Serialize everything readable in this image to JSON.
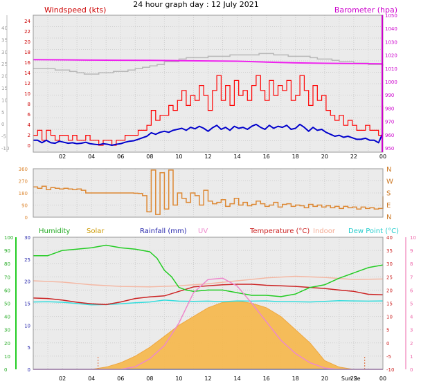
{
  "title": "24 hour graph day : 12 July 2021",
  "colors": {
    "wind": "#ff0000",
    "gust_avg": "#0000cc",
    "baro": "#ee22ee",
    "indoor_baro": "#b8b8b8",
    "winddir": "#dd8833",
    "humidity": "#22cc22",
    "solar": "#f7b84a",
    "rain": "#2222aa",
    "uv": "#ee88cc",
    "temp": "#cc2222",
    "indoor": "#f4b8a4",
    "dew": "#33dddd",
    "grid": "#cfcfcf"
  },
  "x_tick_labels": [
    "02",
    "04",
    "06",
    "08",
    "10",
    "12",
    "14",
    "16",
    "18",
    "20",
    "22",
    "00"
  ],
  "sun_label": "Sun Se",
  "chart_data": [
    {
      "type": "line",
      "panel": "wind_pressure",
      "left_axis_title": "Windspeed (kts)",
      "right_axis_title": "Barometer (hpa)",
      "left_ticks": [
        "24",
        "22",
        "20",
        "18",
        "16",
        "14",
        "12",
        "10",
        "8",
        "6",
        "4",
        "2",
        "0"
      ],
      "right_ticks": [
        "1050",
        "1040",
        "1030",
        "1020",
        "1010",
        "1000",
        "990",
        "980",
        "970",
        "960",
        "950"
      ],
      "outer_ticks": [
        "40",
        "35",
        "30",
        "25",
        "20",
        "15",
        "10",
        "5",
        "0",
        "-5",
        "-10"
      ],
      "ylim": [
        0,
        25
      ],
      "series": [
        {
          "key": "windspeed",
          "x": [
            0,
            0.3,
            0.6,
            0.9,
            1.2,
            1.5,
            1.8,
            2.1,
            2.4,
            2.7,
            3.0,
            3.3,
            3.6,
            3.9,
            4.2,
            4.5,
            4.8,
            5.1,
            5.4,
            5.7,
            6.0,
            6.3,
            6.6,
            6.9,
            7.2,
            7.5,
            7.8,
            8.1,
            8.4,
            8.7,
            9.0,
            9.3,
            9.6,
            9.9,
            10.2,
            10.5,
            10.8,
            11.1,
            11.4,
            11.7,
            12.0,
            12.3,
            12.6,
            12.9,
            13.2,
            13.5,
            13.8,
            14.1,
            14.4,
            14.7,
            15.0,
            15.3,
            15.6,
            15.9,
            16.2,
            16.5,
            16.8,
            17.1,
            17.4,
            17.7,
            18.0,
            18.3,
            18.6,
            18.9,
            19.2,
            19.5,
            19.8,
            20.1,
            20.4,
            20.7,
            21.0,
            21.3,
            21.6,
            21.9,
            22.2,
            22.5,
            22.8,
            23.1,
            23.4,
            23.7,
            24.0
          ],
          "y": [
            2,
            3,
            1,
            3,
            2,
            1,
            2,
            2,
            1,
            2,
            1,
            1,
            2,
            1,
            1,
            0,
            1,
            1,
            0,
            1,
            1,
            2,
            2,
            2,
            3,
            3,
            4,
            7,
            5,
            6,
            6,
            8,
            7,
            9,
            11,
            8,
            10,
            9,
            12,
            10,
            7,
            11,
            14,
            9,
            12,
            8,
            13,
            10,
            11,
            9,
            12,
            14,
            11,
            9,
            13,
            10,
            12,
            11,
            13,
            9,
            10,
            14,
            11,
            8,
            12,
            9,
            10,
            7,
            6,
            5,
            6,
            4,
            5,
            4,
            3,
            3,
            4,
            3,
            3,
            2,
            8
          ]
        },
        {
          "key": "gust_avg",
          "x": [
            0,
            0.3,
            0.6,
            0.9,
            1.2,
            1.5,
            1.8,
            2.1,
            2.4,
            2.7,
            3.0,
            3.3,
            3.6,
            3.9,
            4.2,
            4.5,
            4.8,
            5.1,
            5.4,
            5.7,
            6.0,
            6.3,
            6.6,
            6.9,
            7.2,
            7.5,
            7.8,
            8.1,
            8.4,
            8.7,
            9.0,
            9.3,
            9.6,
            9.9,
            10.2,
            10.5,
            10.8,
            11.1,
            11.4,
            11.7,
            12.0,
            12.3,
            12.6,
            12.9,
            13.2,
            13.5,
            13.8,
            14.1,
            14.4,
            14.7,
            15.0,
            15.3,
            15.6,
            15.9,
            16.2,
            16.5,
            16.8,
            17.1,
            17.4,
            17.7,
            18.0,
            18.3,
            18.6,
            18.9,
            19.2,
            19.5,
            19.8,
            20.1,
            20.4,
            20.7,
            21.0,
            21.3,
            21.6,
            21.9,
            22.2,
            22.5,
            22.8,
            23.1,
            23.4,
            23.7,
            24.0
          ],
          "y": [
            1,
            1,
            0.5,
            1,
            0.5,
            0.4,
            0.8,
            0.6,
            0.4,
            0.5,
            0.3,
            0.4,
            0.6,
            0.3,
            0.2,
            0.1,
            0.3,
            0.2,
            0,
            0.2,
            0.3,
            0.6,
            0.8,
            0.9,
            1.2,
            1.5,
            1.8,
            2.5,
            2.2,
            2.6,
            2.8,
            2.6,
            3.0,
            3.2,
            3.4,
            3.0,
            3.6,
            3.3,
            3.8,
            3.4,
            2.8,
            3.5,
            4.0,
            3.2,
            3.6,
            3.0,
            3.8,
            3.4,
            3.6,
            3.2,
            3.8,
            4.2,
            3.6,
            3.2,
            4.0,
            3.4,
            3.8,
            3.6,
            4.0,
            3.2,
            3.4,
            4.2,
            3.6,
            2.8,
            3.6,
            3.0,
            3.2,
            2.6,
            2.2,
            1.8,
            2.0,
            1.6,
            1.8,
            1.5,
            1.2,
            1.2,
            1.4,
            1.0,
            1.0,
            0.5,
            2.5
          ]
        },
        {
          "key": "barometer",
          "x": [
            0,
            2,
            4,
            6,
            8,
            10,
            12,
            14,
            16,
            18,
            20,
            22,
            24
          ],
          "y": [
            1017.5,
            1017.4,
            1017.2,
            1017.1,
            1017.0,
            1016.8,
            1016.6,
            1016.4,
            1015.8,
            1015.2,
            1014.9,
            1014.7,
            1014.5
          ]
        },
        {
          "key": "indoor_pressure",
          "x": [
            0,
            0.5,
            1.0,
            1.5,
            2.0,
            2.5,
            3.0,
            3.5,
            4.0,
            4.5,
            5.0,
            5.5,
            6.0,
            6.5,
            7.0,
            7.5,
            8.0,
            8.5,
            9.0,
            9.5,
            10.0,
            10.5,
            11.0,
            11.5,
            12.0,
            12.5,
            13.0,
            13.5,
            14.0,
            14.5,
            15.0,
            15.5,
            16.0,
            16.5,
            17.0,
            17.5,
            18.0,
            18.5,
            19.0,
            19.5,
            20.0,
            20.5,
            21.0,
            21.5,
            22.0,
            22.5,
            23.0,
            23.5,
            24.0
          ],
          "y": [
            1011,
            1011,
            1011,
            1010,
            1010,
            1009,
            1008,
            1007,
            1007,
            1008,
            1008,
            1009,
            1009,
            1010,
            1011,
            1012,
            1013,
            1014,
            1016,
            1016,
            1018,
            1019,
            1019,
            1019,
            1020,
            1020,
            1020,
            1021,
            1021,
            1021,
            1021,
            1022,
            1022,
            1021,
            1021,
            1020,
            1020,
            1020,
            1019,
            1018,
            1018,
            1017,
            1016,
            1016,
            1015,
            1015,
            1014,
            1014,
            1013
          ]
        }
      ]
    },
    {
      "type": "line",
      "panel": "wind_direction",
      "left_ticks": [
        "360",
        "270",
        "180",
        "90",
        "0"
      ],
      "right_ticks": [
        "N",
        "W",
        "S",
        "E",
        "N"
      ],
      "ylim": [
        0,
        360
      ],
      "series": [
        {
          "key": "wind_direction",
          "x": [
            0,
            0.3,
            0.6,
            0.9,
            1.2,
            1.5,
            1.8,
            2.1,
            2.4,
            2.7,
            3.0,
            3.3,
            3.6,
            3.9,
            4.2,
            4.5,
            4.8,
            5.1,
            5.4,
            5.7,
            6.0,
            6.3,
            6.6,
            6.9,
            7.2,
            7.5,
            7.8,
            8.1,
            8.4,
            8.7,
            9.0,
            9.3,
            9.6,
            9.9,
            10.2,
            10.5,
            10.8,
            11.1,
            11.4,
            11.7,
            12.0,
            12.3,
            12.6,
            12.9,
            13.2,
            13.5,
            13.8,
            14.1,
            14.4,
            14.7,
            15.0,
            15.3,
            15.6,
            15.9,
            16.2,
            16.5,
            16.8,
            17.1,
            17.4,
            17.7,
            18.0,
            18.3,
            18.6,
            18.9,
            19.2,
            19.5,
            19.8,
            20.1,
            20.4,
            20.7,
            21.0,
            21.3,
            21.6,
            21.9,
            22.2,
            22.5,
            22.8,
            23.1,
            23.4,
            23.7,
            24.0
          ],
          "y": [
            225,
            215,
            230,
            205,
            220,
            215,
            210,
            215,
            210,
            205,
            210,
            200,
            180,
            180,
            180,
            180,
            180,
            180,
            180,
            180,
            180,
            180,
            180,
            178,
            176,
            160,
            40,
            350,
            20,
            330,
            60,
            350,
            90,
            180,
            140,
            110,
            180,
            160,
            90,
            200,
            120,
            100,
            110,
            130,
            80,
            100,
            140,
            90,
            110,
            85,
            95,
            120,
            100,
            80,
            90,
            110,
            75,
            95,
            100,
            80,
            90,
            85,
            70,
            95,
            80,
            90,
            75,
            85,
            70,
            80,
            65,
            80,
            70,
            75,
            60,
            75,
            65,
            70,
            60,
            65,
            155
          ]
        }
      ]
    },
    {
      "type": "area",
      "panel": "temp_humidity_solar",
      "legend": [
        "Humidity",
        "Solar",
        "Rainfall (mm)",
        "UV",
        "Temperature (°C)",
        "Indoor",
        "Dew Point (°C)"
      ],
      "left_ticks": [
        "30",
        "25",
        "20",
        "15",
        "10",
        "5",
        "0"
      ],
      "outer_ticks": [
        "100",
        "90",
        "80",
        "70",
        "60",
        "50",
        "40",
        "30",
        "20",
        "10",
        "0"
      ],
      "right_ticks": [
        "40",
        "35",
        "30",
        "25",
        "20",
        "15",
        "10",
        "5",
        "0",
        "-5",
        "-10"
      ],
      "uv_ticks": [
        "10",
        "9",
        "8",
        "7",
        "6",
        "5",
        "4",
        "3",
        "2",
        "1",
        "0"
      ],
      "series": [
        {
          "key": "humidity",
          "x": [
            0,
            1,
            2,
            3,
            4,
            5,
            6,
            7,
            8,
            8.5,
            9,
            9.5,
            10,
            10.5,
            11,
            12,
            13,
            14,
            15,
            16,
            17,
            18,
            19,
            20,
            21,
            22,
            23,
            24
          ],
          "y": [
            86,
            86,
            90,
            91,
            92,
            94,
            92,
            91,
            89,
            84,
            75,
            70,
            62,
            60,
            59,
            60,
            60,
            58,
            56,
            56,
            55,
            57,
            62,
            64,
            69,
            73,
            77,
            79
          ]
        },
        {
          "key": "solar",
          "x": [
            0,
            4,
            5,
            6,
            7,
            8,
            9,
            10,
            11,
            12,
            13,
            14,
            15,
            16,
            17,
            18,
            19,
            20,
            21,
            22,
            24
          ],
          "y": [
            0,
            0,
            0.5,
            1.5,
            3,
            5,
            7.5,
            10,
            12,
            14,
            15.2,
            15.5,
            15,
            14,
            12,
            9,
            6,
            2,
            0.5,
            0,
            0
          ]
        },
        {
          "key": "rainfall",
          "x": [
            0,
            24
          ],
          "y": [
            0,
            0
          ]
        },
        {
          "key": "uv",
          "x": [
            0,
            6,
            7,
            8,
            9,
            10,
            11,
            12,
            13,
            14,
            15,
            16,
            17,
            18,
            19,
            20,
            21,
            22,
            24
          ],
          "y": [
            0,
            0,
            0.2,
            0.8,
            1.8,
            3.5,
            5.8,
            6.8,
            6.9,
            6.3,
            5,
            3.6,
            2.2,
            1.2,
            0.5,
            0.1,
            0,
            0,
            0
          ]
        },
        {
          "key": "temperature",
          "x": [
            0,
            1,
            2,
            3,
            4,
            5,
            6,
            7,
            8,
            9,
            10,
            11,
            12,
            13,
            14,
            15,
            16,
            17,
            18,
            19,
            20,
            21,
            22,
            23,
            24
          ],
          "y": [
            17,
            16.8,
            16.2,
            15.4,
            14.8,
            14.5,
            15.5,
            16.8,
            17.4,
            17.8,
            19.5,
            21.2,
            21.6,
            22.0,
            22.2,
            22.2,
            21.8,
            21.6,
            21.4,
            21.0,
            20.6,
            20.0,
            19.5,
            18.4,
            18.2
          ]
        },
        {
          "key": "indoor",
          "x": [
            0,
            2,
            4,
            6,
            8,
            10,
            12,
            14,
            16,
            18,
            20,
            22,
            24
          ],
          "y": [
            23.5,
            23,
            22,
            21.4,
            21.2,
            21.6,
            22.4,
            23.5,
            24.6,
            25.2,
            24.8,
            24,
            24.2
          ]
        },
        {
          "key": "dew_point",
          "x": [
            0,
            1,
            2,
            3,
            4,
            5,
            6,
            7,
            8,
            9,
            10,
            11,
            12,
            13,
            14,
            15,
            16,
            17,
            18,
            19,
            20,
            21,
            22,
            23,
            24
          ],
          "y": [
            15.5,
            15.6,
            15.4,
            14.9,
            14.4,
            14.5,
            14.8,
            15.2,
            15.5,
            16.2,
            15.8,
            15.7,
            15.8,
            15.6,
            15.9,
            15.8,
            15.9,
            15.6,
            15.6,
            15.5,
            15.7,
            16,
            15.9,
            15.8,
            15.9
          ]
        }
      ]
    }
  ]
}
